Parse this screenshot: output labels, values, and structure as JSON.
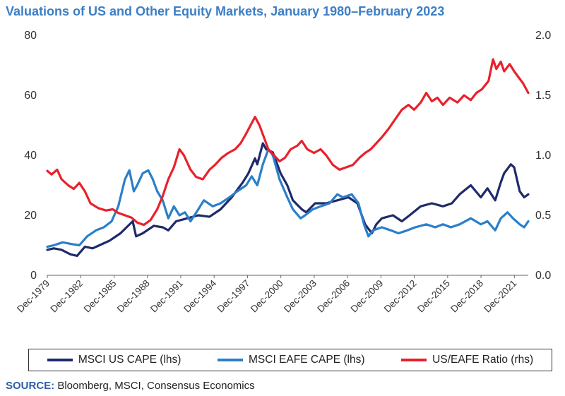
{
  "chart_data": {
    "type": "line",
    "title": "Valuations of US and Other Equity Markets, January 1980–February 2023",
    "source_label": "SOURCE:",
    "source_text": "Bloomberg, MSCI, Consensus Economics",
    "left_axis": {
      "ylim": [
        0,
        80
      ],
      "ticks": [
        "0",
        "20",
        "40",
        "60",
        "80"
      ]
    },
    "right_axis": {
      "ylim": [
        0.0,
        2.0
      ],
      "ticks": [
        "0.0",
        "0.5",
        "1.0",
        "1.5",
        "2.0"
      ]
    },
    "x_range": [
      1979.92,
      2023.17
    ],
    "x_ticks": [
      {
        "label": "Dec-1979",
        "x": 1979.92
      },
      {
        "label": "Dec-1982",
        "x": 1982.92
      },
      {
        "label": "Dec-1985",
        "x": 1985.92
      },
      {
        "label": "Dec-1988",
        "x": 1988.92
      },
      {
        "label": "Dec-1991",
        "x": 1991.92
      },
      {
        "label": "Dec-1994",
        "x": 1994.92
      },
      {
        "label": "Dec-1997",
        "x": 1997.92
      },
      {
        "label": "Dec-2000",
        "x": 2000.92
      },
      {
        "label": "Dec-2003",
        "x": 2003.92
      },
      {
        "label": "Dec-2006",
        "x": 2006.92
      },
      {
        "label": "Dec-2009",
        "x": 2009.92
      },
      {
        "label": "Dec-2012",
        "x": 2012.92
      },
      {
        "label": "Dec-2015",
        "x": 2015.92
      },
      {
        "label": "Dec-2018",
        "x": 2018.92
      },
      {
        "label": "Dec-2021",
        "x": 2021.92
      }
    ],
    "grid": false,
    "legend_position": "bottom",
    "series": [
      {
        "name": "MSCI US CAPE (lhs)",
        "axis": "left",
        "color": "#1f2a6b",
        "points": [
          [
            1979.92,
            8.5
          ],
          [
            1980.5,
            9
          ],
          [
            1981.2,
            8.5
          ],
          [
            1982.0,
            7
          ],
          [
            1982.6,
            6.5
          ],
          [
            1983.3,
            9.5
          ],
          [
            1984.0,
            9
          ],
          [
            1984.6,
            10
          ],
          [
            1985.5,
            11.5
          ],
          [
            1986.5,
            14
          ],
          [
            1987.6,
            18
          ],
          [
            1987.9,
            13
          ],
          [
            1988.5,
            14
          ],
          [
            1989.5,
            16.5
          ],
          [
            1990.3,
            16
          ],
          [
            1990.8,
            15
          ],
          [
            1991.5,
            18
          ],
          [
            1992.5,
            19
          ],
          [
            1993.5,
            20
          ],
          [
            1994.5,
            19.5
          ],
          [
            1995.5,
            22
          ],
          [
            1996.5,
            26
          ],
          [
            1997.5,
            31
          ],
          [
            1998.0,
            34
          ],
          [
            1998.6,
            39
          ],
          [
            1998.8,
            37
          ],
          [
            1999.3,
            44
          ],
          [
            1999.6,
            42
          ],
          [
            2000.2,
            41
          ],
          [
            2000.9,
            34
          ],
          [
            2001.5,
            30
          ],
          [
            2002.0,
            25
          ],
          [
            2002.8,
            22
          ],
          [
            2003.2,
            21
          ],
          [
            2004.0,
            24
          ],
          [
            2005.0,
            24
          ],
          [
            2006.0,
            25
          ],
          [
            2007.0,
            26
          ],
          [
            2007.8,
            24
          ],
          [
            2008.5,
            17
          ],
          [
            2009.1,
            14
          ],
          [
            2009.5,
            17
          ],
          [
            2010.0,
            19
          ],
          [
            2011.0,
            20
          ],
          [
            2011.8,
            18
          ],
          [
            2012.5,
            20
          ],
          [
            2013.5,
            23
          ],
          [
            2014.5,
            24
          ],
          [
            2015.5,
            23
          ],
          [
            2016.3,
            24
          ],
          [
            2017.0,
            27
          ],
          [
            2018.0,
            30
          ],
          [
            2018.9,
            26
          ],
          [
            2019.5,
            29
          ],
          [
            2020.2,
            25
          ],
          [
            2020.7,
            31
          ],
          [
            2021.0,
            34
          ],
          [
            2021.6,
            37
          ],
          [
            2021.9,
            36
          ],
          [
            2022.4,
            28
          ],
          [
            2022.8,
            26
          ],
          [
            2023.17,
            27
          ]
        ]
      },
      {
        "name": "MSCI EAFE CAPE (lhs)",
        "axis": "left",
        "color": "#2a7fc9",
        "points": [
          [
            1979.92,
            9.5
          ],
          [
            1980.5,
            10
          ],
          [
            1981.3,
            11
          ],
          [
            1982.0,
            10.5
          ],
          [
            1982.8,
            10
          ],
          [
            1983.5,
            13
          ],
          [
            1984.3,
            15
          ],
          [
            1985.0,
            16
          ],
          [
            1985.7,
            18
          ],
          [
            1986.3,
            23
          ],
          [
            1986.9,
            32
          ],
          [
            1987.3,
            35
          ],
          [
            1987.7,
            28
          ],
          [
            1988.0,
            30
          ],
          [
            1988.5,
            34
          ],
          [
            1989.0,
            35
          ],
          [
            1989.4,
            32
          ],
          [
            1989.8,
            28
          ],
          [
            1990.3,
            25
          ],
          [
            1990.8,
            19
          ],
          [
            1991.3,
            23
          ],
          [
            1991.8,
            20
          ],
          [
            1992.3,
            21
          ],
          [
            1992.8,
            18
          ],
          [
            1993.5,
            22
          ],
          [
            1994.0,
            25
          ],
          [
            1994.8,
            23
          ],
          [
            1995.5,
            24
          ],
          [
            1996.3,
            26
          ],
          [
            1997.0,
            28
          ],
          [
            1997.8,
            30
          ],
          [
            1998.3,
            33
          ],
          [
            1998.8,
            30
          ],
          [
            1999.3,
            37
          ],
          [
            1999.8,
            42
          ],
          [
            2000.2,
            40
          ],
          [
            2000.8,
            32
          ],
          [
            2001.5,
            26
          ],
          [
            2002.0,
            22
          ],
          [
            2002.7,
            19
          ],
          [
            2003.1,
            20
          ],
          [
            2003.8,
            22
          ],
          [
            2004.5,
            23
          ],
          [
            2005.3,
            24
          ],
          [
            2006.0,
            27
          ],
          [
            2006.5,
            26
          ],
          [
            2007.3,
            27
          ],
          [
            2007.9,
            24
          ],
          [
            2008.4,
            17
          ],
          [
            2008.8,
            13
          ],
          [
            2009.2,
            15
          ],
          [
            2010.0,
            16
          ],
          [
            2010.8,
            15
          ],
          [
            2011.5,
            14
          ],
          [
            2012.3,
            15
          ],
          [
            2013.0,
            16
          ],
          [
            2014.0,
            17
          ],
          [
            2014.8,
            16
          ],
          [
            2015.5,
            17
          ],
          [
            2016.2,
            16
          ],
          [
            2017.0,
            17
          ],
          [
            2018.0,
            19
          ],
          [
            2018.9,
            17
          ],
          [
            2019.5,
            18
          ],
          [
            2020.2,
            15
          ],
          [
            2020.7,
            19
          ],
          [
            2021.3,
            21
          ],
          [
            2021.8,
            19
          ],
          [
            2022.4,
            17
          ],
          [
            2022.8,
            16
          ],
          [
            2023.17,
            18
          ]
        ]
      },
      {
        "name": "US/EAFE Ratio (rhs)",
        "axis": "right",
        "color": "#e8212b",
        "points": [
          [
            1979.92,
            0.87
          ],
          [
            1980.3,
            0.84
          ],
          [
            1980.8,
            0.88
          ],
          [
            1981.2,
            0.8
          ],
          [
            1981.8,
            0.75
          ],
          [
            1982.3,
            0.72
          ],
          [
            1982.8,
            0.77
          ],
          [
            1983.3,
            0.7
          ],
          [
            1983.8,
            0.6
          ],
          [
            1984.5,
            0.56
          ],
          [
            1985.2,
            0.54
          ],
          [
            1985.8,
            0.55
          ],
          [
            1986.3,
            0.52
          ],
          [
            1986.9,
            0.5
          ],
          [
            1987.5,
            0.48
          ],
          [
            1988.0,
            0.44
          ],
          [
            1988.6,
            0.42
          ],
          [
            1989.2,
            0.46
          ],
          [
            1989.8,
            0.55
          ],
          [
            1990.3,
            0.66
          ],
          [
            1990.8,
            0.8
          ],
          [
            1991.3,
            0.9
          ],
          [
            1991.8,
            1.05
          ],
          [
            1992.2,
            1.0
          ],
          [
            1992.8,
            0.88
          ],
          [
            1993.3,
            0.82
          ],
          [
            1993.9,
            0.8
          ],
          [
            1994.5,
            0.88
          ],
          [
            1995.0,
            0.92
          ],
          [
            1995.6,
            0.98
          ],
          [
            1996.2,
            1.02
          ],
          [
            1996.8,
            1.05
          ],
          [
            1997.3,
            1.1
          ],
          [
            1997.8,
            1.18
          ],
          [
            1998.2,
            1.25
          ],
          [
            1998.6,
            1.32
          ],
          [
            1999.0,
            1.25
          ],
          [
            1999.4,
            1.15
          ],
          [
            1999.8,
            1.05
          ],
          [
            2000.3,
            1.0
          ],
          [
            2000.8,
            0.95
          ],
          [
            2001.3,
            0.98
          ],
          [
            2001.8,
            1.05
          ],
          [
            2002.4,
            1.08
          ],
          [
            2002.8,
            1.12
          ],
          [
            2003.3,
            1.05
          ],
          [
            2003.9,
            1.02
          ],
          [
            2004.5,
            1.05
          ],
          [
            2005.0,
            1.0
          ],
          [
            2005.6,
            0.92
          ],
          [
            2006.2,
            0.88
          ],
          [
            2006.8,
            0.9
          ],
          [
            2007.4,
            0.92
          ],
          [
            2008.0,
            0.98
          ],
          [
            2008.5,
            1.02
          ],
          [
            2009.0,
            1.05
          ],
          [
            2009.5,
            1.1
          ],
          [
            2010.0,
            1.15
          ],
          [
            2010.6,
            1.22
          ],
          [
            2011.2,
            1.3
          ],
          [
            2011.8,
            1.38
          ],
          [
            2012.4,
            1.42
          ],
          [
            2012.9,
            1.38
          ],
          [
            2013.5,
            1.44
          ],
          [
            2014.0,
            1.52
          ],
          [
            2014.5,
            1.45
          ],
          [
            2015.0,
            1.48
          ],
          [
            2015.5,
            1.42
          ],
          [
            2016.1,
            1.48
          ],
          [
            2016.8,
            1.44
          ],
          [
            2017.4,
            1.5
          ],
          [
            2018.0,
            1.46
          ],
          [
            2018.5,
            1.52
          ],
          [
            2019.0,
            1.55
          ],
          [
            2019.6,
            1.62
          ],
          [
            2020.0,
            1.8
          ],
          [
            2020.3,
            1.72
          ],
          [
            2020.7,
            1.78
          ],
          [
            2021.0,
            1.7
          ],
          [
            2021.5,
            1.76
          ],
          [
            2021.9,
            1.7
          ],
          [
            2022.3,
            1.65
          ],
          [
            2022.7,
            1.6
          ],
          [
            2023.17,
            1.52
          ]
        ]
      }
    ]
  }
}
